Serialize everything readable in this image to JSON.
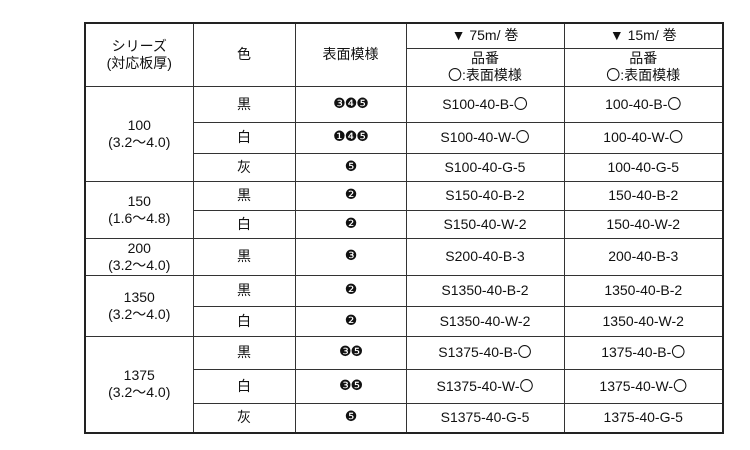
{
  "header": {
    "series": "シリーズ\n(対応板厚)",
    "color": "色",
    "pattern": "表面模様",
    "roll75": "▼ 75m/ 巻",
    "roll15": "▼ 15m/ 巻",
    "partno75": "品番\n〇:表面模様",
    "partno15": "品番\n〇:表面模様"
  },
  "groups": [
    {
      "series": "100\n(3.2〜4.0)",
      "rows": [
        {
          "color": "黒",
          "pattern": "❸❹❺",
          "p75": "S100-40-B-〇",
          "p15": "100-40-B-〇"
        },
        {
          "color": "白",
          "pattern": "❶❹❺",
          "p75": "S100-40-W-〇",
          "p15": "100-40-W-〇"
        },
        {
          "color": "灰",
          "pattern": "❺",
          "p75": "S100-40-G-5",
          "p15": "100-40-G-5"
        }
      ]
    },
    {
      "series": "150\n(1.6〜4.8)",
      "rows": [
        {
          "color": "黒",
          "pattern": "❷",
          "p75": "S150-40-B-2",
          "p15": "150-40-B-2"
        },
        {
          "color": "白",
          "pattern": "❷",
          "p75": "S150-40-W-2",
          "p15": "150-40-W-2"
        }
      ]
    },
    {
      "series": "200\n(3.2〜4.0)",
      "rows": [
        {
          "color": "黒",
          "pattern": "❸",
          "p75": "S200-40-B-3",
          "p15": "200-40-B-3"
        }
      ]
    },
    {
      "series": "1350\n(3.2〜4.0)",
      "rows": [
        {
          "color": "黒",
          "pattern": "❷",
          "p75": "S1350-40-B-2",
          "p15": "1350-40-B-2"
        },
        {
          "color": "白",
          "pattern": "❷",
          "p75": "S1350-40-W-2",
          "p15": "1350-40-W-2"
        }
      ]
    },
    {
      "series": "1375\n(3.2〜4.0)",
      "rows": [
        {
          "color": "黒",
          "pattern": "❸❺",
          "p75": "S1375-40-B-〇",
          "p15": "1375-40-B-〇"
        },
        {
          "color": "白",
          "pattern": "❸❺",
          "p75": "S1375-40-W-〇",
          "p15": "1375-40-W-〇"
        },
        {
          "color": "灰",
          "pattern": "❺",
          "p75": "S1375-40-G-5",
          "p15": "1375-40-G-5"
        }
      ]
    }
  ]
}
